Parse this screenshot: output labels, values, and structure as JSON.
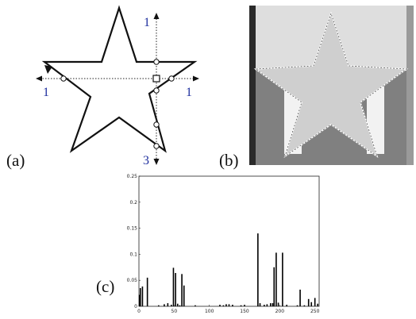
{
  "figure": {
    "labels": {
      "a": "(a)",
      "b": "(b)",
      "c": "(c)"
    },
    "panel_a": {
      "axis_numbers": {
        "top": "1",
        "left": "1",
        "right": "1",
        "bottom": "3"
      }
    },
    "panel_b": {
      "colors": {
        "top": "#dedede",
        "bottom": "#808080",
        "star": "#d0d0d0",
        "light_band": "#f2f2f2",
        "left_bar": "#2a2a2a"
      }
    }
  },
  "chart_data": {
    "type": "bar",
    "title": "",
    "xlabel": "",
    "ylabel": "",
    "xlim": [
      0,
      256
    ],
    "ylim": [
      0,
      0.25
    ],
    "x_ticks": [
      0,
      50,
      100,
      150,
      200,
      250
    ],
    "y_ticks": [
      0,
      0.05,
      0.1,
      0.15,
      0.2,
      0.25
    ],
    "x_tick_labels": [
      "0",
      "50",
      "100",
      "150",
      "200",
      "250"
    ],
    "y_tick_labels": [
      "0",
      "0.05",
      "0.1",
      "0.15",
      "0.2",
      "0.25"
    ],
    "grid": false,
    "bars": [
      {
        "x": 1,
        "y": 0.022
      },
      {
        "x": 2,
        "y": 0.035
      },
      {
        "x": 5,
        "y": 0.038
      },
      {
        "x": 12,
        "y": 0.055
      },
      {
        "x": 28,
        "y": 0.002
      },
      {
        "x": 36,
        "y": 0.004
      },
      {
        "x": 41,
        "y": 0.006
      },
      {
        "x": 46,
        "y": 0.003
      },
      {
        "x": 49,
        "y": 0.074
      },
      {
        "x": 52,
        "y": 0.064
      },
      {
        "x": 55,
        "y": 0.005
      },
      {
        "x": 58,
        "y": 0.002
      },
      {
        "x": 61,
        "y": 0.062
      },
      {
        "x": 64,
        "y": 0.04
      },
      {
        "x": 80,
        "y": 0.002
      },
      {
        "x": 115,
        "y": 0.003
      },
      {
        "x": 120,
        "y": 0.002
      },
      {
        "x": 124,
        "y": 0.004
      },
      {
        "x": 128,
        "y": 0.004
      },
      {
        "x": 133,
        "y": 0.003
      },
      {
        "x": 145,
        "y": 0.002
      },
      {
        "x": 150,
        "y": 0.003
      },
      {
        "x": 169,
        "y": 0.14
      },
      {
        "x": 172,
        "y": 0.006
      },
      {
        "x": 178,
        "y": 0.003
      },
      {
        "x": 182,
        "y": 0.004
      },
      {
        "x": 187,
        "y": 0.006
      },
      {
        "x": 190,
        "y": 0.006
      },
      {
        "x": 192,
        "y": 0.075
      },
      {
        "x": 195,
        "y": 0.103
      },
      {
        "x": 198,
        "y": 0.007
      },
      {
        "x": 204,
        "y": 0.103
      },
      {
        "x": 210,
        "y": 0.003
      },
      {
        "x": 225,
        "y": 0.002
      },
      {
        "x": 229,
        "y": 0.032
      },
      {
        "x": 235,
        "y": 0.002
      },
      {
        "x": 241,
        "y": 0.014
      },
      {
        "x": 245,
        "y": 0.008
      },
      {
        "x": 250,
        "y": 0.016
      },
      {
        "x": 254,
        "y": 0.005
      }
    ]
  }
}
